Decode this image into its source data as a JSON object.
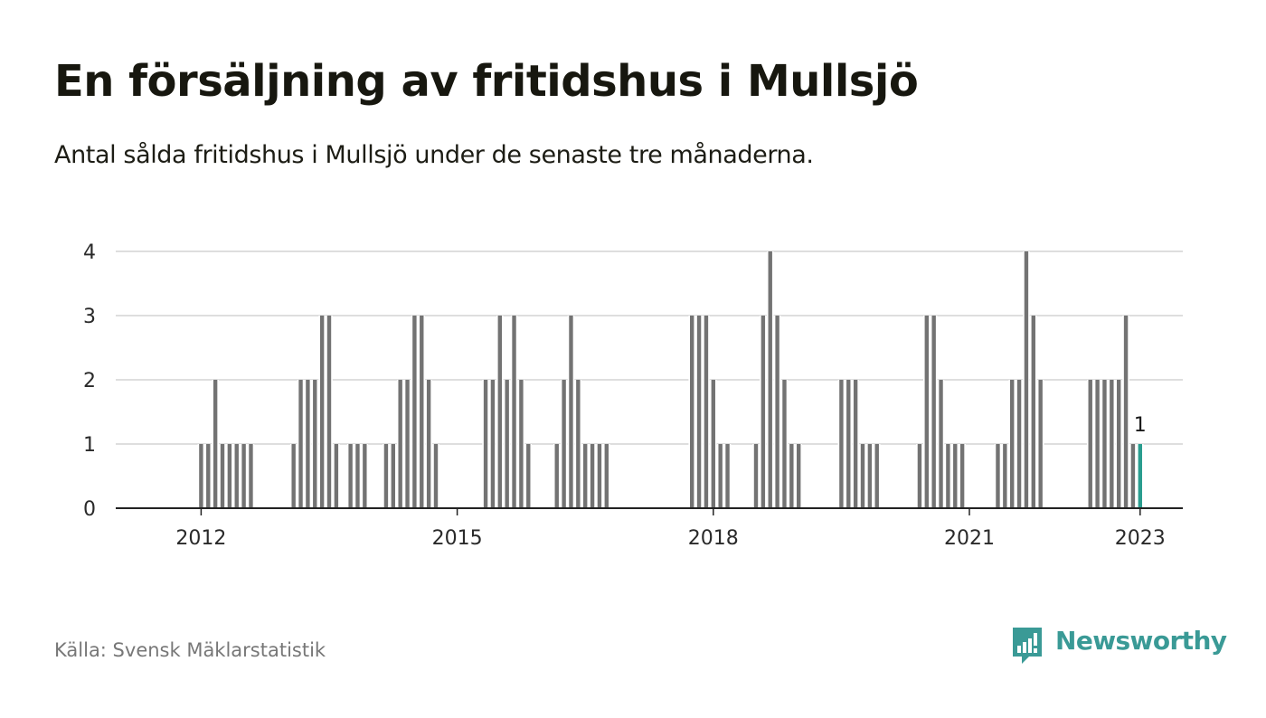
{
  "title": "En försäljning av fritidshus i Mullsjö",
  "subtitle": "Antal sålda fritidshus i Mullsjö under de senaste tre månaderna.",
  "source": "Källa: Svensk Mäklarstatistik",
  "brand": {
    "name": "Newsworthy",
    "color": "#3a9a96",
    "icon": "newsworthy-chart-logo-icon"
  },
  "chart_data": {
    "type": "bar",
    "x_axis": {
      "type": "date",
      "start": "2011-01",
      "end": "2023-07"
    },
    "ylim": [
      0,
      4
    ],
    "yticks": [
      0,
      1,
      2,
      3,
      4
    ],
    "xticks": [
      {
        "date": "2012-01",
        "label": "2012"
      },
      {
        "date": "2015-01",
        "label": "2015"
      },
      {
        "date": "2018-01",
        "label": "2018"
      },
      {
        "date": "2021-01",
        "label": "2021"
      },
      {
        "date": "2023-01",
        "label": "2023"
      }
    ],
    "grid": true,
    "bar_color": "#737373",
    "highlight_color": "#2a9d8f",
    "series": [
      {
        "points": [
          {
            "x": "2012-01",
            "y": 1
          },
          {
            "x": "2012-02",
            "y": 1
          },
          {
            "x": "2012-03",
            "y": 2
          },
          {
            "x": "2012-04",
            "y": 1
          },
          {
            "x": "2012-05",
            "y": 1
          },
          {
            "x": "2012-06",
            "y": 1
          },
          {
            "x": "2012-07",
            "y": 1
          },
          {
            "x": "2012-08",
            "y": 1
          },
          {
            "x": "2013-02",
            "y": 1
          },
          {
            "x": "2013-03",
            "y": 2
          },
          {
            "x": "2013-04",
            "y": 2
          },
          {
            "x": "2013-05",
            "y": 2
          },
          {
            "x": "2013-06",
            "y": 3
          },
          {
            "x": "2013-07",
            "y": 3
          },
          {
            "x": "2013-08",
            "y": 1
          },
          {
            "x": "2013-10",
            "y": 1
          },
          {
            "x": "2013-11",
            "y": 1
          },
          {
            "x": "2013-12",
            "y": 1
          },
          {
            "x": "2014-03",
            "y": 1
          },
          {
            "x": "2014-04",
            "y": 1
          },
          {
            "x": "2014-05",
            "y": 2
          },
          {
            "x": "2014-06",
            "y": 2
          },
          {
            "x": "2014-07",
            "y": 3
          },
          {
            "x": "2014-08",
            "y": 3
          },
          {
            "x": "2014-09",
            "y": 2
          },
          {
            "x": "2014-10",
            "y": 1
          },
          {
            "x": "2015-05",
            "y": 2
          },
          {
            "x": "2015-06",
            "y": 2
          },
          {
            "x": "2015-07",
            "y": 3
          },
          {
            "x": "2015-08",
            "y": 2
          },
          {
            "x": "2015-09",
            "y": 3
          },
          {
            "x": "2015-10",
            "y": 2
          },
          {
            "x": "2015-11",
            "y": 1
          },
          {
            "x": "2016-03",
            "y": 1
          },
          {
            "x": "2016-04",
            "y": 2
          },
          {
            "x": "2016-05",
            "y": 3
          },
          {
            "x": "2016-06",
            "y": 2
          },
          {
            "x": "2016-07",
            "y": 1
          },
          {
            "x": "2016-08",
            "y": 1
          },
          {
            "x": "2016-09",
            "y": 1
          },
          {
            "x": "2016-10",
            "y": 1
          },
          {
            "x": "2017-10",
            "y": 3
          },
          {
            "x": "2017-11",
            "y": 3
          },
          {
            "x": "2017-12",
            "y": 3
          },
          {
            "x": "2018-01",
            "y": 2
          },
          {
            "x": "2018-02",
            "y": 1
          },
          {
            "x": "2018-03",
            "y": 1
          },
          {
            "x": "2018-07",
            "y": 1
          },
          {
            "x": "2018-08",
            "y": 3
          },
          {
            "x": "2018-09",
            "y": 4
          },
          {
            "x": "2018-10",
            "y": 3
          },
          {
            "x": "2018-11",
            "y": 2
          },
          {
            "x": "2018-12",
            "y": 1
          },
          {
            "x": "2019-01",
            "y": 1
          },
          {
            "x": "2019-07",
            "y": 2
          },
          {
            "x": "2019-08",
            "y": 2
          },
          {
            "x": "2019-09",
            "y": 2
          },
          {
            "x": "2019-10",
            "y": 1
          },
          {
            "x": "2019-11",
            "y": 1
          },
          {
            "x": "2019-12",
            "y": 1
          },
          {
            "x": "2020-06",
            "y": 1
          },
          {
            "x": "2020-07",
            "y": 3
          },
          {
            "x": "2020-08",
            "y": 3
          },
          {
            "x": "2020-09",
            "y": 2
          },
          {
            "x": "2020-10",
            "y": 1
          },
          {
            "x": "2020-11",
            "y": 1
          },
          {
            "x": "2020-12",
            "y": 1
          },
          {
            "x": "2021-05",
            "y": 1
          },
          {
            "x": "2021-06",
            "y": 1
          },
          {
            "x": "2021-07",
            "y": 2
          },
          {
            "x": "2021-08",
            "y": 2
          },
          {
            "x": "2021-09",
            "y": 4
          },
          {
            "x": "2021-10",
            "y": 3
          },
          {
            "x": "2021-11",
            "y": 2
          },
          {
            "x": "2022-06",
            "y": 2
          },
          {
            "x": "2022-07",
            "y": 2
          },
          {
            "x": "2022-08",
            "y": 2
          },
          {
            "x": "2022-09",
            "y": 2
          },
          {
            "x": "2022-10",
            "y": 2
          },
          {
            "x": "2022-11",
            "y": 3
          },
          {
            "x": "2022-12",
            "y": 1
          },
          {
            "x": "2023-01",
            "y": 1,
            "highlight": true,
            "label": "1"
          }
        ]
      }
    ]
  }
}
